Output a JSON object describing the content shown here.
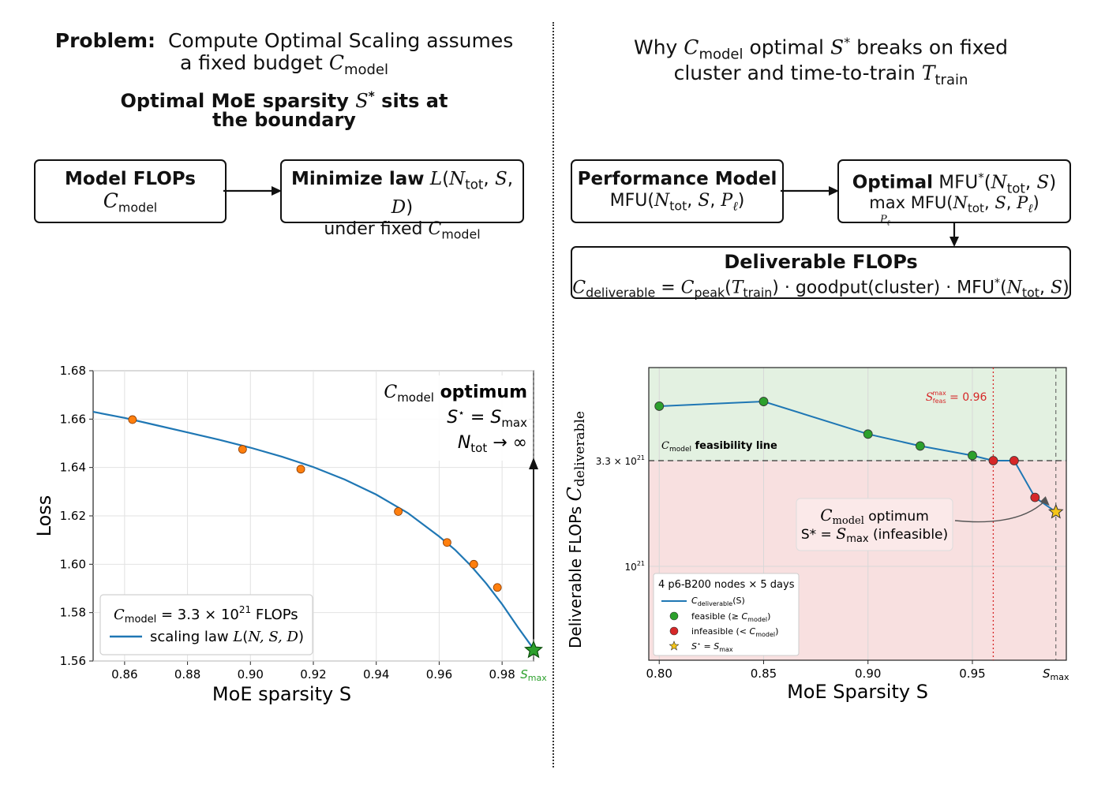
{
  "left": {
    "title_bold": "Problem:",
    "title_rest": "Compute Optimal Scaling assumes",
    "title_line2": "a fixed budget",
    "subtitle_line1": "Optimal MoE sparsity",
    "subtitle_line1b": "sits at",
    "subtitle_line2": "the boundary",
    "box1_line1": "Model FLOPs",
    "box2_bold": "Minimize law",
    "box2_line2": "under fixed"
  },
  "right": {
    "title_pre": "Why",
    "title_mid": "optimal",
    "title_post": "breaks on fixed",
    "title_line2": "cluster and time-to-train",
    "box1_line1": "Performance Model",
    "box2_bold": "Optimal",
    "box3_line1": "Deliverable FLOPs",
    "box3_goodput": "· goodput(cluster) · MFU"
  },
  "chart_data": [
    {
      "type": "line",
      "xlabel": "MoE sparsity S",
      "ylabel": "Loss",
      "xlim": [
        0.85,
        0.99
      ],
      "ylim": [
        1.56,
        1.68
      ],
      "x_ticks": [
        "0.86",
        "0.88",
        "0.90",
        "0.92",
        "0.94",
        "0.96",
        "0.98"
      ],
      "x_tick_values": [
        0.86,
        0.88,
        0.9,
        0.92,
        0.94,
        0.96,
        0.98
      ],
      "x_max_tick": "S_max",
      "y_ticks": [
        "1.56",
        "1.58",
        "1.60",
        "1.62",
        "1.64",
        "1.66",
        "1.68"
      ],
      "y_tick_values": [
        1.56,
        1.58,
        1.6,
        1.62,
        1.64,
        1.66,
        1.68
      ],
      "grid": true,
      "curve": {
        "name": "scaling law L(N, S, D)",
        "x": [
          0.85,
          0.86,
          0.87,
          0.88,
          0.89,
          0.9,
          0.91,
          0.92,
          0.93,
          0.94,
          0.95,
          0.96,
          0.965,
          0.97,
          0.975,
          0.98,
          0.985,
          0.99
        ],
        "y": [
          1.663,
          1.6605,
          1.6575,
          1.6545,
          1.6515,
          1.6482,
          1.6445,
          1.6402,
          1.635,
          1.6288,
          1.6212,
          1.6115,
          1.606,
          1.5995,
          1.592,
          1.5835,
          1.574,
          1.565
        ]
      },
      "points": {
        "x": [
          0.8625,
          0.8975,
          0.916,
          0.947,
          0.9625,
          0.971,
          0.9785
        ],
        "y": [
          1.6598,
          1.6475,
          1.6393,
          1.6218,
          1.609,
          1.6,
          1.5904
        ]
      },
      "optimum": {
        "x": 0.99,
        "y": 1.5645
      },
      "annotation": {
        "line1": "optimum",
        "line2": "S* = S_max",
        "line3": "N_tot → ∞"
      },
      "legend": {
        "entry1": "= 3.3 × 10",
        "entry1_exp": "21",
        "entry1_unit": "FLOPs",
        "entry2": "scaling law"
      },
      "colors": {
        "curve": "#1f77b4",
        "points": "#ff7f0e",
        "star": "#2ca02c",
        "smax": "#2ca02c"
      }
    },
    {
      "type": "line",
      "xlabel": "MoE Sparsity S",
      "ylabel": "Deliverable FLOPs",
      "xlim": [
        0.795,
        0.995
      ],
      "y_scale": "log",
      "x_ticks": [
        "0.80",
        "0.85",
        "0.90",
        "0.95"
      ],
      "x_tick_values": [
        0.8,
        0.85,
        0.9,
        0.95
      ],
      "x_max_tick": "S_max",
      "y_ticks": [
        "3.3 × 10",
        "10"
      ],
      "y_tick_exps": [
        "21",
        "21"
      ],
      "feasibility_line_value": 3.3e+21,
      "feasibility_label": "feasibility line",
      "s_feas_max": 0.96,
      "s_feas_label": "= 0.96",
      "s_max": 0.99,
      "series": {
        "x": [
          0.8,
          0.85,
          0.9,
          0.925,
          0.95,
          0.96,
          0.97,
          0.98,
          0.99
        ],
        "y_rel": [
          1.85,
          1.95,
          1.35,
          1.18,
          1.06,
          1.0,
          1.0,
          0.66,
          0.56
        ],
        "status": [
          "feasible",
          "feasible",
          "feasible",
          "feasible",
          "feasible",
          "infeasible",
          "infeasible",
          "infeasible",
          "optimum"
        ]
      },
      "annotation": {
        "line1": "optimum",
        "line2": "S* =",
        "line2b": "(infeasible)"
      },
      "legend": {
        "title": "4 p6-B200 nodes × 5 days",
        "entry1": "C_deliverable(S)",
        "entry2": "feasible (≥",
        "entry3": "infeasible (<",
        "entry4": "S* = S_max"
      },
      "colors": {
        "line": "#1f77b4",
        "feasible": "#2ca02c",
        "infeasible": "#d62728",
        "star": "#f5c518",
        "feasible_bg": "#e3f1e1",
        "infeasible_bg": "#f8e0e0",
        "vline": "#d62728"
      }
    }
  ]
}
